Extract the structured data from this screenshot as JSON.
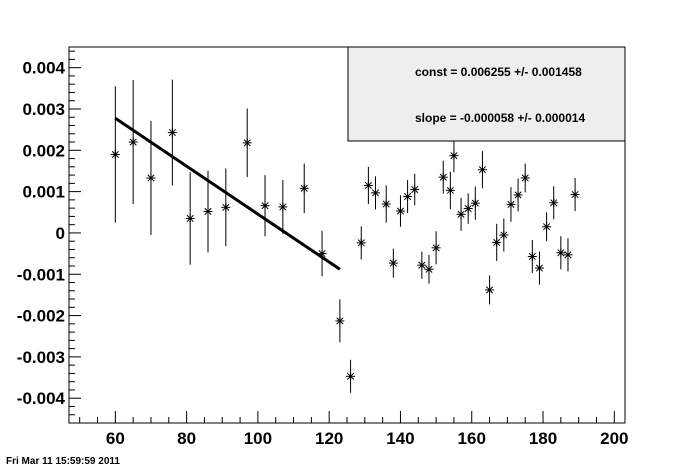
{
  "timestamp": "Fri Mar 11 15:59:59 2011",
  "stats": {
    "const": "const = 0.006255 +/- 0.001458",
    "slope": "slope = -0.000058 +/- 0.000014"
  },
  "chart_data": {
    "type": "scatter",
    "xlim": [
      47,
      203
    ],
    "ylim": [
      -0.0046,
      0.0045
    ],
    "x_ticks": [
      {
        "v": 60,
        "label": "60"
      },
      {
        "v": 80,
        "label": "80"
      },
      {
        "v": 100,
        "label": "100"
      },
      {
        "v": 120,
        "label": "120"
      },
      {
        "v": 140,
        "label": "140"
      },
      {
        "v": 160,
        "label": "160"
      },
      {
        "v": 180,
        "label": "180"
      },
      {
        "v": 200,
        "label": "200"
      }
    ],
    "y_ticks": [
      {
        "v": 0.004,
        "label": "0.004"
      },
      {
        "v": 0.003,
        "label": "0.003"
      },
      {
        "v": 0.002,
        "label": "0.002"
      },
      {
        "v": 0.001,
        "label": "0.001"
      },
      {
        "v": 0,
        "label": "0"
      },
      {
        "v": -0.001,
        "label": "-0.001"
      },
      {
        "v": -0.002,
        "label": "-0.002"
      },
      {
        "v": -0.003,
        "label": "-0.003"
      },
      {
        "v": -0.004,
        "label": "-0.004"
      }
    ],
    "points": [
      {
        "x": 60,
        "y": 0.0019,
        "e": 0.00165
      },
      {
        "x": 65,
        "y": 0.0022,
        "e": 0.0015
      },
      {
        "x": 70,
        "y": 0.00133,
        "e": 0.00138
      },
      {
        "x": 76,
        "y": 0.00243,
        "e": 0.00128
      },
      {
        "x": 81,
        "y": 0.00035,
        "e": 0.00112
      },
      {
        "x": 86,
        "y": 0.00052,
        "e": 0.00099
      },
      {
        "x": 91,
        "y": 0.00062,
        "e": 0.00094
      },
      {
        "x": 97,
        "y": 0.00218,
        "e": 0.00083
      },
      {
        "x": 102,
        "y": 0.00066,
        "e": 0.00074
      },
      {
        "x": 107,
        "y": 0.00063,
        "e": 0.00065
      },
      {
        "x": 113,
        "y": 0.00108,
        "e": 0.0006
      },
      {
        "x": 118,
        "y": -0.0005,
        "e": 0.00055
      },
      {
        "x": 123,
        "y": -0.00213,
        "e": 0.00052
      },
      {
        "x": 126,
        "y": -0.00347,
        "e": 0.0004
      },
      {
        "x": 129,
        "y": -0.00024,
        "e": 0.0004
      },
      {
        "x": 131,
        "y": 0.00115,
        "e": 0.00045
      },
      {
        "x": 133,
        "y": 0.00097,
        "e": 0.0004
      },
      {
        "x": 136,
        "y": 0.0007,
        "e": 0.00045
      },
      {
        "x": 138,
        "y": -0.00073,
        "e": 0.00035
      },
      {
        "x": 140,
        "y": 0.00053,
        "e": 0.00038
      },
      {
        "x": 142,
        "y": 0.00088,
        "e": 0.0004
      },
      {
        "x": 144,
        "y": 0.00105,
        "e": 0.00038
      },
      {
        "x": 146,
        "y": -0.00078,
        "e": 0.00033
      },
      {
        "x": 148,
        "y": -0.00088,
        "e": 0.00035
      },
      {
        "x": 150,
        "y": -0.00036,
        "e": 0.0004
      },
      {
        "x": 152,
        "y": 0.00135,
        "e": 0.0004
      },
      {
        "x": 154,
        "y": 0.00103,
        "e": 0.00045
      },
      {
        "x": 155,
        "y": 0.00187,
        "e": 0.0004
      },
      {
        "x": 157,
        "y": 0.00045,
        "e": 0.0004
      },
      {
        "x": 159,
        "y": 0.00059,
        "e": 0.00037
      },
      {
        "x": 161,
        "y": 0.00072,
        "e": 0.0004
      },
      {
        "x": 163,
        "y": 0.00153,
        "e": 0.00045
      },
      {
        "x": 165,
        "y": -0.00138,
        "e": 0.00035
      },
      {
        "x": 167,
        "y": -0.00023,
        "e": 0.00045
      },
      {
        "x": 169,
        "y": -5e-05,
        "e": 0.0004
      },
      {
        "x": 171,
        "y": 0.00069,
        "e": 0.00042
      },
      {
        "x": 173,
        "y": 0.00092,
        "e": 0.0004
      },
      {
        "x": 175,
        "y": 0.00133,
        "e": 0.00035
      },
      {
        "x": 177,
        "y": -0.00057,
        "e": 0.0004
      },
      {
        "x": 179,
        "y": -0.00085,
        "e": 0.0004
      },
      {
        "x": 181,
        "y": 0.00015,
        "e": 0.00035
      },
      {
        "x": 183,
        "y": 0.00073,
        "e": 0.0004
      },
      {
        "x": 185,
        "y": -0.00048,
        "e": 0.0004
      },
      {
        "x": 187,
        "y": -0.00053,
        "e": 0.0004
      },
      {
        "x": 189,
        "y": 0.00093,
        "e": 0.0004
      }
    ],
    "fit": {
      "const": 0.006255,
      "slope": -5.8e-05,
      "x_range": [
        60,
        123
      ]
    }
  }
}
